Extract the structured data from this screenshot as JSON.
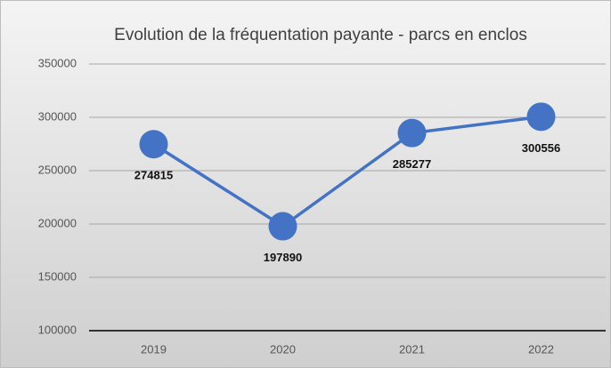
{
  "chart_data": {
    "type": "line",
    "title": "Evolution de la fréquentation payante - parcs en enclos",
    "categories": [
      "2019",
      "2020",
      "2021",
      "2022"
    ],
    "series": [
      {
        "color": "#4472c4",
        "values": [
          274815,
          197890,
          285277,
          300556
        ]
      }
    ],
    "ylim": [
      100000,
      350000
    ],
    "yticks": [
      100000,
      150000,
      200000,
      250000,
      300000,
      350000
    ],
    "grid": true
  }
}
